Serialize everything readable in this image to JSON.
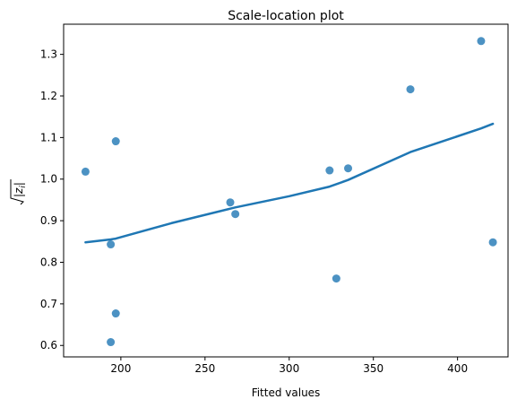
{
  "chart_data": {
    "type": "scatter",
    "title": "Scale-location plot",
    "xlabel": "Fitted values",
    "ylabel_base": "|z",
    "ylabel_sub": "i",
    "xlim": [
      166,
      430
    ],
    "ylim": [
      0.5725,
      1.3725
    ],
    "xticks": [
      {
        "value": 200,
        "label": "200"
      },
      {
        "value": 250,
        "label": "250"
      },
      {
        "value": 300,
        "label": "300"
      },
      {
        "value": 350,
        "label": "350"
      },
      {
        "value": 400,
        "label": "400"
      }
    ],
    "yticks": [
      {
        "value": 0.6,
        "label": "0.6"
      },
      {
        "value": 0.7,
        "label": "0.7"
      },
      {
        "value": 0.8,
        "label": "0.8"
      },
      {
        "value": 0.9,
        "label": "0.9"
      },
      {
        "value": 1.0,
        "label": "1.0"
      },
      {
        "value": 1.1,
        "label": "1.1"
      },
      {
        "value": 1.2,
        "label": "1.2"
      },
      {
        "value": 1.3,
        "label": "1.3"
      }
    ],
    "grid": false,
    "points": [
      {
        "x": 179,
        "y": 1.018
      },
      {
        "x": 194,
        "y": 0.843
      },
      {
        "x": 194,
        "y": 0.608
      },
      {
        "x": 197,
        "y": 0.677
      },
      {
        "x": 197,
        "y": 1.091
      },
      {
        "x": 265,
        "y": 0.944
      },
      {
        "x": 268,
        "y": 0.916
      },
      {
        "x": 324,
        "y": 1.021
      },
      {
        "x": 328,
        "y": 0.761
      },
      {
        "x": 335,
        "y": 1.026
      },
      {
        "x": 372,
        "y": 1.216
      },
      {
        "x": 414,
        "y": 1.332
      },
      {
        "x": 421,
        "y": 0.848
      }
    ],
    "smooth_line": [
      {
        "x": 179,
        "y": 0.848
      },
      {
        "x": 194,
        "y": 0.855
      },
      {
        "x": 197,
        "y": 0.857
      },
      {
        "x": 230,
        "y": 0.894
      },
      {
        "x": 265,
        "y": 0.929
      },
      {
        "x": 268,
        "y": 0.932
      },
      {
        "x": 300,
        "y": 0.959
      },
      {
        "x": 324,
        "y": 0.982
      },
      {
        "x": 335,
        "y": 0.998
      },
      {
        "x": 372,
        "y": 1.065
      },
      {
        "x": 414,
        "y": 1.122
      },
      {
        "x": 421,
        "y": 1.133
      }
    ],
    "colors": {
      "point": "#1f77b4",
      "line": "#1f77b4",
      "axes": "#000000"
    }
  }
}
